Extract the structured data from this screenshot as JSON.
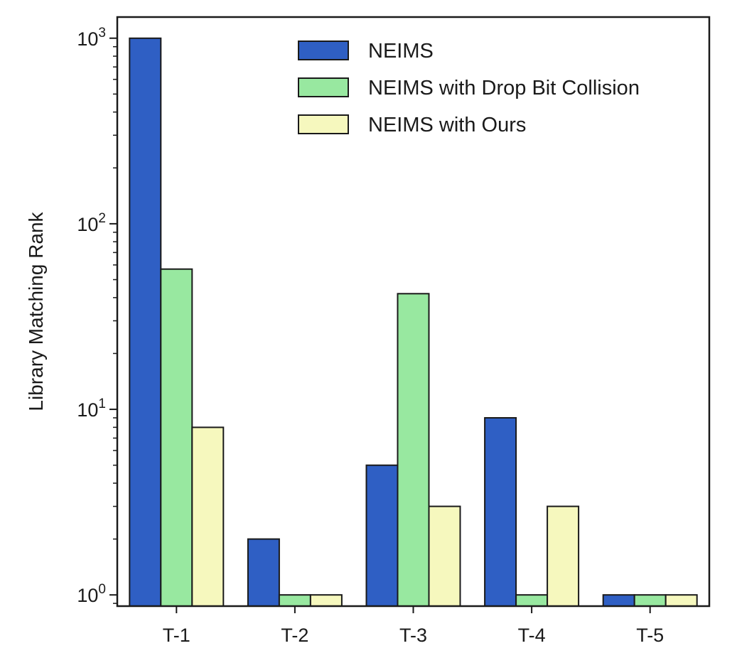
{
  "chart_data": {
    "type": "bar",
    "title": "",
    "xlabel": "",
    "ylabel": "Library Matching Rank",
    "yscale": "log",
    "ylim": [
      0.87,
      1300
    ],
    "yticks": [
      {
        "value": 1,
        "base": "10",
        "exp": "0"
      },
      {
        "value": 10,
        "base": "10",
        "exp": "1"
      },
      {
        "value": 100,
        "base": "10",
        "exp": "2"
      },
      {
        "value": 1000,
        "base": "10",
        "exp": "3"
      }
    ],
    "categories": [
      "T-1",
      "T-2",
      "T-3",
      "T-4",
      "T-5"
    ],
    "series": [
      {
        "name": "NEIMS",
        "color": "#2f5fc4",
        "values": [
          1000,
          2,
          5,
          9,
          1
        ]
      },
      {
        "name": "NEIMS with Drop Bit Collision",
        "color": "#98e8a0",
        "values": [
          57,
          1,
          42,
          1,
          1
        ]
      },
      {
        "name": "NEIMS with Ours",
        "color": "#f6f8be",
        "values": [
          8,
          1,
          3,
          3,
          1
        ]
      }
    ],
    "legend_position": "top-right",
    "grid": false
  }
}
